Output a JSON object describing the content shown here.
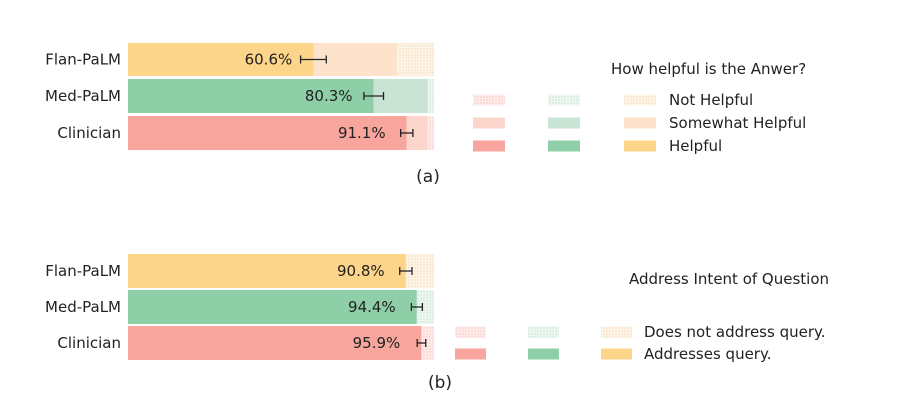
{
  "chart_data": [
    {
      "type": "bar",
      "orientation": "horizontal",
      "stacked": true,
      "panel_label": "(a)",
      "legend_title": "How helpful is the Anwer?",
      "categories": [
        "Flan-PaLM",
        "Med-PaLM",
        "Clinician"
      ],
      "xlim": [
        0,
        100
      ],
      "bar_colors": [
        "#fcd48a",
        "#8ecfa7",
        "#f7a59d"
      ],
      "series": [
        {
          "name": "Helpful",
          "values": [
            60.6,
            80.3,
            91.1
          ],
          "error": [
            4.2,
            3.2,
            2.0
          ]
        },
        {
          "name": "Somewhat Helpful",
          "values": [
            27.4,
            17.7,
            6.9
          ]
        },
        {
          "name": "Not Helpful",
          "values": [
            12.0,
            2.0,
            2.0
          ]
        }
      ],
      "labels": [
        "60.6%",
        "80.3%",
        "91.1%"
      ],
      "legend_entries": [
        "Not Helpful",
        "Somewhat Helpful",
        "Helpful"
      ]
    },
    {
      "type": "bar",
      "orientation": "horizontal",
      "stacked": true,
      "panel_label": "(b)",
      "legend_title": "Address Intent of Question",
      "categories": [
        "Flan-PaLM",
        "Med-PaLM",
        "Clinician"
      ],
      "xlim": [
        0,
        100
      ],
      "bar_colors": [
        "#fcd48a",
        "#8ecfa7",
        "#f7a59d"
      ],
      "series": [
        {
          "name": "Addresses query.",
          "values": [
            90.8,
            94.4,
            95.9
          ],
          "error": [
            2.0,
            1.8,
            1.4
          ]
        },
        {
          "name": "Does not address query.",
          "values": [
            9.2,
            5.6,
            4.1
          ]
        }
      ],
      "labels": [
        "90.8%",
        "94.4%",
        "95.9%"
      ],
      "legend_entries": [
        "Does not address query.",
        "Addresses query."
      ]
    }
  ]
}
